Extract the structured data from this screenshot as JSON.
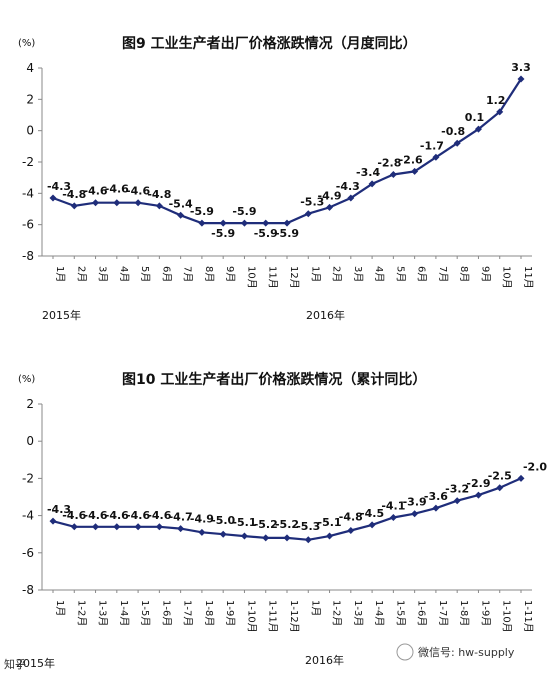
{
  "chart_data": [
    {
      "type": "line",
      "title": "图9 工业生产者出厂价格涨跌情况（月度同比）",
      "unit": "(%)",
      "ylim": [
        -8,
        4
      ],
      "yticks": [
        "4",
        "2",
        "0",
        "-2",
        "-4",
        "-6",
        "-8"
      ],
      "year_labels": [
        "2015年",
        "2016年"
      ],
      "categories": [
        "1月",
        "2月",
        "3月",
        "4月",
        "5月",
        "6月",
        "7月",
        "8月",
        "9月",
        "10月",
        "11月",
        "12月",
        "1月",
        "2月",
        "3月",
        "4月",
        "5月",
        "6月",
        "7月",
        "8月",
        "9月",
        "10月",
        "11月"
      ],
      "series": [
        {
          "values": [
            -4.3,
            -4.8,
            -4.6,
            -4.6,
            -4.6,
            -4.8,
            -5.4,
            -5.9,
            -5.9,
            -5.9,
            -5.9,
            -5.9,
            -5.3,
            -4.9,
            -4.3,
            -3.4,
            -2.8,
            -2.6,
            -1.7,
            -0.8,
            0.1,
            1.2,
            3.3
          ]
        }
      ],
      "color": "#1f2d7a",
      "grid": false
    },
    {
      "type": "line",
      "title": "图10 工业生产者出厂价格涨跌情况（累计同比）",
      "unit": "(%)",
      "ylim": [
        -8,
        2
      ],
      "yticks": [
        "2",
        "0",
        "-2",
        "-4",
        "-6",
        "-8"
      ],
      "year_labels": [
        "2015年",
        "2016年"
      ],
      "categories": [
        "1月",
        "1-2月",
        "1-3月",
        "1-4月",
        "1-5月",
        "1-6月",
        "1-7月",
        "1-8月",
        "1-9月",
        "1-10月",
        "1-11月",
        "1-12月",
        "1月",
        "1-2月",
        "1-3月",
        "1-4月",
        "1-5月",
        "1-6月",
        "1-7月",
        "1-8月",
        "1-9月",
        "1-10月",
        "1-11月"
      ],
      "series": [
        {
          "values": [
            -4.3,
            -4.6,
            -4.6,
            -4.6,
            -4.6,
            -4.6,
            -4.7,
            -4.9,
            -5.0,
            -5.1,
            -5.2,
            -5.2,
            -5.3,
            -5.1,
            -4.8,
            -4.5,
            -4.1,
            -3.9,
            -3.6,
            -3.2,
            -2.9,
            -2.5,
            -2.0
          ]
        }
      ],
      "color": "#1f2d7a",
      "grid": false
    }
  ],
  "watermark": {
    "left": "知乎",
    "right": "微信号: hw-supply"
  }
}
